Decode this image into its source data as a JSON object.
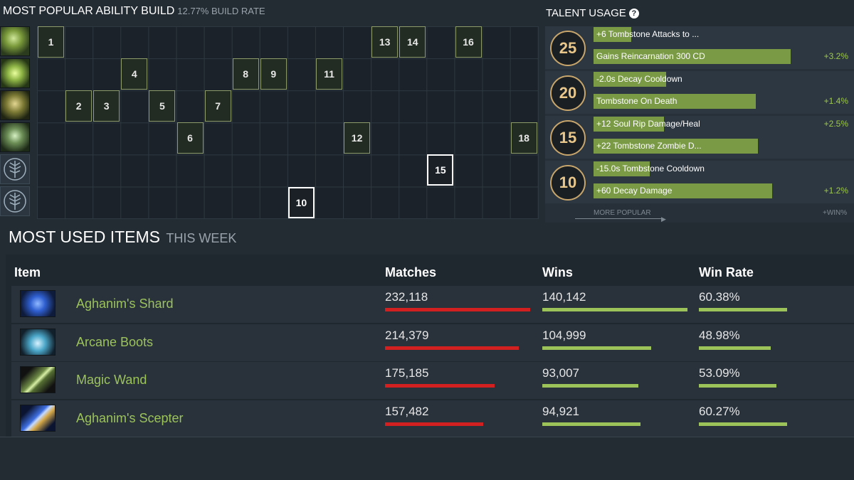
{
  "ability_build": {
    "title": "MOST POPULAR ABILITY BUILD",
    "build_rate": "12.77% BUILD RATE",
    "skills": [
      "ability-1-icon",
      "ability-2-icon",
      "ability-3-icon",
      "ability-4-icon",
      "talent-tree-icon",
      "talent-tree-icon"
    ],
    "levels": [
      {
        "level": "1",
        "row": 1,
        "col": 1
      },
      {
        "level": "2",
        "row": 3,
        "col": 2
      },
      {
        "level": "3",
        "row": 3,
        "col": 3
      },
      {
        "level": "4",
        "row": 2,
        "col": 4
      },
      {
        "level": "5",
        "row": 3,
        "col": 5
      },
      {
        "level": "6",
        "row": 4,
        "col": 6
      },
      {
        "level": "7",
        "row": 3,
        "col": 7
      },
      {
        "level": "8",
        "row": 2,
        "col": 8
      },
      {
        "level": "9",
        "row": 2,
        "col": 9
      },
      {
        "level": "10",
        "row": 6,
        "col": 10,
        "ult": true
      },
      {
        "level": "11",
        "row": 2,
        "col": 11
      },
      {
        "level": "12",
        "row": 4,
        "col": 12
      },
      {
        "level": "13",
        "row": 1,
        "col": 13
      },
      {
        "level": "14",
        "row": 1,
        "col": 14
      },
      {
        "level": "15",
        "row": 5,
        "col": 15,
        "ult": true
      },
      {
        "level": "16",
        "row": 1,
        "col": 16
      },
      {
        "level": "18",
        "row": 4,
        "col": 18
      }
    ]
  },
  "talent_usage": {
    "title": "TALENT USAGE",
    "help_icon": "?",
    "more_popular": "MORE POPULAR",
    "win_label": "+WIN%",
    "tiers": [
      {
        "level": "25",
        "top": {
          "text": "+6 Tombstone Attacks to ...",
          "popularity": 0.16,
          "win": ""
        },
        "bottom": {
          "text": "Gains Reincarnation 300 CD",
          "popularity": 0.84,
          "win": "+3.2%"
        }
      },
      {
        "level": "20",
        "top": {
          "text": "-2.0s Decay Cooldown",
          "popularity": 0.31,
          "win": ""
        },
        "bottom": {
          "text": "Tombstone On Death",
          "popularity": 0.69,
          "win": "+1.4%"
        }
      },
      {
        "level": "15",
        "top": {
          "text": "+12 Soul Rip Damage/Heal",
          "popularity": 0.3,
          "win": "+2.5%"
        },
        "bottom": {
          "text": "+22 Tombstone Zombie D...",
          "popularity": 0.7,
          "win": ""
        }
      },
      {
        "level": "10",
        "top": {
          "text": "-15.0s Tombstone Cooldown",
          "popularity": 0.24,
          "win": ""
        },
        "bottom": {
          "text": "+60 Decay Damage",
          "popularity": 0.76,
          "win": "+1.2%"
        }
      }
    ]
  },
  "items": {
    "title": "MOST USED ITEMS",
    "subtitle": "THIS WEEK",
    "headers": {
      "item": "Item",
      "matches": "Matches",
      "wins": "Wins",
      "win_rate": "Win Rate"
    },
    "rows": [
      {
        "name": "Aghanim's Shard",
        "icon": "aghanims-shard-icon",
        "matches": "232,118",
        "wins": "140,142",
        "win_rate": "60.38%",
        "matches_frac": 1.0,
        "wins_frac": 1.0,
        "wr_frac": 1.0
      },
      {
        "name": "Arcane Boots",
        "icon": "arcane-boots-icon",
        "matches": "214,379",
        "wins": "104,999",
        "win_rate": "48.98%",
        "matches_frac": 0.923,
        "wins_frac": 0.749,
        "wr_frac": 0.811
      },
      {
        "name": "Magic Wand",
        "icon": "magic-wand-icon",
        "matches": "175,185",
        "wins": "93,007",
        "win_rate": "53.09%",
        "matches_frac": 0.755,
        "wins_frac": 0.664,
        "wr_frac": 0.879
      },
      {
        "name": "Aghanim's Scepter",
        "icon": "aghanims-scepter-icon",
        "matches": "157,482",
        "wins": "94,921",
        "win_rate": "60.27%",
        "matches_frac": 0.678,
        "wins_frac": 0.677,
        "wr_frac": 0.998
      }
    ]
  },
  "colors": {
    "matches_bar": "#d21f1f",
    "wins_bar": "#9bc35a",
    "talent_bar": "#7a9a46",
    "item_name": "#9bc35a",
    "win_text": "#9ec94a"
  }
}
